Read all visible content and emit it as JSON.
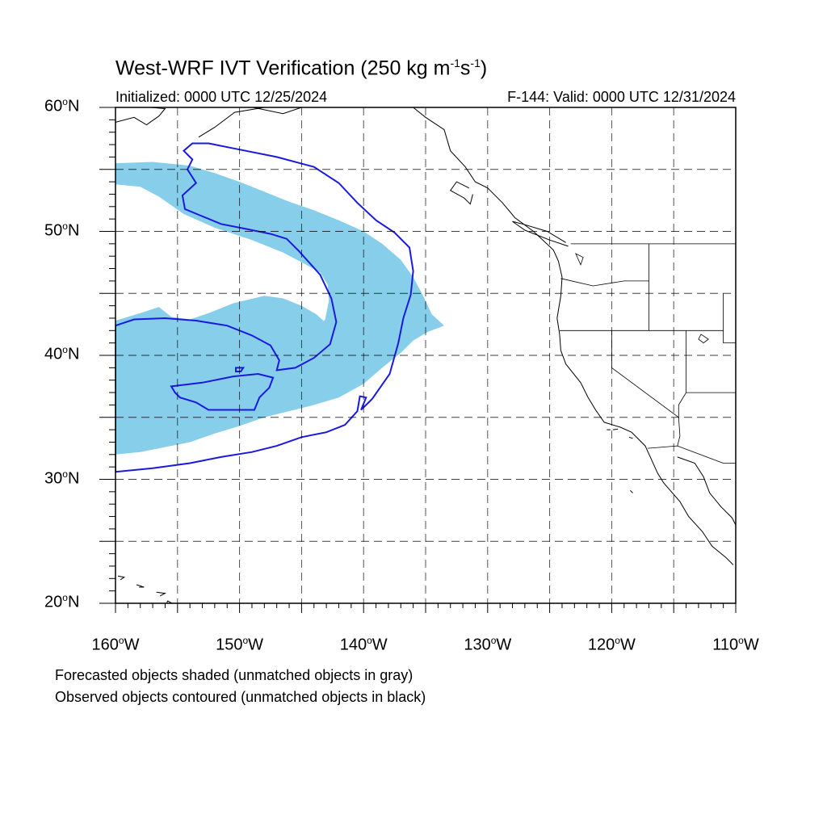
{
  "title": {
    "main": "West-WRF IVT Verification (250 kg m",
    "exp1": "-1",
    "mid": "s",
    "exp2": "-1",
    "close": ")"
  },
  "subtitle_left": "Initialized: 0000 UTC 12/25/2024",
  "subtitle_right": "F-144: Valid: 0000 UTC 12/31/2024",
  "map_extent": {
    "lon_min": -160,
    "lon_max": -110,
    "lat_min": 20,
    "lat_max": 60
  },
  "lat_labels": [
    {
      "lat": 60,
      "num": "60",
      "hemi": "N"
    },
    {
      "lat": 50,
      "num": "50",
      "hemi": "N"
    },
    {
      "lat": 40,
      "num": "40",
      "hemi": "N"
    },
    {
      "lat": 30,
      "num": "30",
      "hemi": "N"
    },
    {
      "lat": 20,
      "num": "20",
      "hemi": "N"
    }
  ],
  "lon_labels": [
    {
      "lon": -160,
      "num": "160",
      "hemi": "W"
    },
    {
      "lon": -150,
      "num": "150",
      "hemi": "W"
    },
    {
      "lon": -140,
      "num": "140",
      "hemi": "W"
    },
    {
      "lon": -130,
      "num": "130",
      "hemi": "W"
    },
    {
      "lon": -120,
      "num": "120",
      "hemi": "W"
    },
    {
      "lon": -110,
      "num": "110",
      "hemi": "W"
    }
  ],
  "degree_symbol": "o",
  "gridlines": {
    "style": "dashed",
    "lon_step": 5,
    "lat_step": 5
  },
  "colors": {
    "forecast_fill": "#87ceeb",
    "observed_contour": "#1a1adf",
    "coast": "#000000"
  },
  "forecast_object": {
    "label": "forecast IVT object (shaded)",
    "outline": [
      [
        -160,
        55.5
      ],
      [
        -157,
        55.6
      ],
      [
        -154,
        55.3
      ],
      [
        -152,
        54.7
      ],
      [
        -150,
        54.0
      ],
      [
        -148,
        53.2
      ],
      [
        -146,
        52.4
      ],
      [
        -144,
        51.7
      ],
      [
        -142,
        50.9
      ],
      [
        -140,
        50.0
      ],
      [
        -138.5,
        49.0
      ],
      [
        -137,
        47.7
      ],
      [
        -136,
        46.3
      ],
      [
        -135.2,
        44.8
      ],
      [
        -134.5,
        43.3
      ],
      [
        -133.5,
        42.4
      ],
      [
        -134.8,
        41.9
      ],
      [
        -136,
        41.2
      ],
      [
        -137,
        40.2
      ],
      [
        -138.5,
        39.0
      ],
      [
        -140,
        37.7
      ],
      [
        -142,
        36.6
      ],
      [
        -144,
        36.0
      ],
      [
        -146,
        35.5
      ],
      [
        -148,
        35.0
      ],
      [
        -150,
        34.3
      ],
      [
        -152,
        33.7
      ],
      [
        -154,
        33.0
      ],
      [
        -156,
        32.6
      ],
      [
        -158,
        32.2
      ],
      [
        -160,
        32.0
      ],
      [
        -160,
        42.8
      ],
      [
        -158,
        43.4
      ],
      [
        -156.5,
        43.9
      ],
      [
        -155.5,
        43.1
      ],
      [
        -154,
        42.9
      ],
      [
        -152.5,
        43.4
      ],
      [
        -150.5,
        44.2
      ],
      [
        -148,
        44.8
      ],
      [
        -146.5,
        44.6
      ],
      [
        -145,
        44.0
      ],
      [
        -143.8,
        43.3
      ],
      [
        -142.8,
        42.4
      ],
      [
        -142.2,
        41.2
      ],
      [
        -143.5,
        40.7
      ],
      [
        -145.5,
        40.5
      ],
      [
        -144.2,
        41.6
      ],
      [
        -143.1,
        42.9
      ],
      [
        -142.8,
        44.4
      ],
      [
        -142.9,
        45.7
      ],
      [
        -143.5,
        46.7
      ],
      [
        -144.8,
        47.4
      ],
      [
        -146.5,
        48.3
      ],
      [
        -149,
        49.3
      ],
      [
        -152,
        50.3
      ],
      [
        -154.5,
        51.4
      ],
      [
        -156.5,
        52.8
      ],
      [
        -158,
        53.6
      ],
      [
        -160,
        53.8
      ]
    ]
  },
  "observed_objects": [
    {
      "label": "main observed IVT object (contour)",
      "outline": [
        [
          -152.5,
          57.1
        ],
        [
          -150,
          56.6
        ],
        [
          -147,
          56.0
        ],
        [
          -144,
          55.2
        ],
        [
          -142,
          53.9
        ],
        [
          -140.5,
          52.3
        ],
        [
          -139,
          50.9
        ],
        [
          -137.5,
          49.9
        ],
        [
          -136.3,
          48.7
        ],
        [
          -136,
          46.8
        ],
        [
          -136.2,
          44.9
        ],
        [
          -136.8,
          43.0
        ],
        [
          -137.2,
          41.0
        ],
        [
          -137.9,
          38.5
        ],
        [
          -139.3,
          36.5
        ],
        [
          -140.2,
          35.6
        ],
        [
          -139.8,
          36.6
        ],
        [
          -140.3,
          36.7
        ],
        [
          -140.5,
          35.5
        ],
        [
          -141.5,
          34.4
        ],
        [
          -143,
          33.8
        ],
        [
          -145,
          33.4
        ],
        [
          -147,
          32.7
        ],
        [
          -149,
          32.2
        ],
        [
          -151.5,
          31.8
        ],
        [
          -154,
          31.3
        ],
        [
          -157,
          30.9
        ],
        [
          -160,
          30.6
        ],
        [
          -160,
          42.4
        ],
        [
          -158.5,
          42.9
        ],
        [
          -156,
          43.0
        ],
        [
          -153.5,
          42.8
        ],
        [
          -151,
          42.4
        ],
        [
          -149,
          41.6
        ],
        [
          -147.5,
          40.8
        ],
        [
          -146.8,
          39.6
        ],
        [
          -147,
          38.8
        ],
        [
          -145.5,
          39.0
        ],
        [
          -144,
          39.8
        ],
        [
          -142.7,
          40.9
        ],
        [
          -142.2,
          42.7
        ],
        [
          -142.6,
          44.6
        ],
        [
          -143.5,
          46.5
        ],
        [
          -145.2,
          48.4
        ],
        [
          -146.2,
          49.4
        ],
        [
          -147.5,
          49.8
        ],
        [
          -149.5,
          50.2
        ],
        [
          -151.5,
          50.6
        ],
        [
          -153.2,
          51.3
        ],
        [
          -154.4,
          51.8
        ],
        [
          -154.6,
          52.9
        ],
        [
          -153.5,
          53.9
        ],
        [
          -154.2,
          55.0
        ],
        [
          -153.8,
          55.8
        ],
        [
          -154.5,
          56.5
        ],
        [
          -153.8,
          57.1
        ]
      ]
    },
    {
      "label": "inner observed IVT object (contour)",
      "outline": [
        [
          -155.5,
          37.5
        ],
        [
          -153,
          37.8
        ],
        [
          -150.5,
          38.3
        ],
        [
          -148.5,
          38.5
        ],
        [
          -147.3,
          38.2
        ],
        [
          -147.6,
          37.4
        ],
        [
          -148.4,
          36.6
        ],
        [
          -148.8,
          35.6
        ],
        [
          -150.5,
          35.6
        ],
        [
          -152.5,
          35.6
        ],
        [
          -153.5,
          36.2
        ],
        [
          -154.8,
          36.6
        ],
        [
          -155.2,
          37.0
        ]
      ]
    },
    {
      "label": "small observed IVT object (contour)",
      "outline": [
        [
          -150.3,
          39.0
        ],
        [
          -149.7,
          39.0
        ],
        [
          -149.9,
          38.7
        ],
        [
          -150.3,
          38.7
        ]
      ]
    }
  ],
  "coastline": [
    [
      -153.3,
      57.6
    ],
    [
      -152,
      58.4
    ],
    [
      -150.4,
      59.6
    ],
    [
      -148,
      60
    ],
    [
      -136,
      60
    ],
    [
      -135,
      59.2
    ],
    [
      -133.5,
      58.2
    ],
    [
      -133,
      56.5
    ],
    [
      -131.8,
      55.2
    ],
    [
      -131,
      54
    ],
    [
      -130,
      53.5
    ],
    [
      -128.8,
      52.3
    ],
    [
      -127.8,
      51.1
    ],
    [
      -126.3,
      50
    ],
    [
      -124.7,
      48.5
    ],
    [
      -124.3,
      47.6
    ],
    [
      -124,
      46.3
    ],
    [
      -124.1,
      44.8
    ],
    [
      -124.4,
      43
    ],
    [
      -124.2,
      41.7
    ],
    [
      -124.1,
      40.4
    ],
    [
      -123.7,
      39.3
    ],
    [
      -122.5,
      37.8
    ],
    [
      -121.9,
      36.6
    ],
    [
      -121.3,
      35.6
    ],
    [
      -120.6,
      34.6
    ],
    [
      -119.3,
      34.2
    ],
    [
      -118.4,
      33.8
    ],
    [
      -117.3,
      32.7
    ],
    [
      -116.8,
      31.6
    ],
    [
      -116.3,
      30.5
    ],
    [
      -115.8,
      29.7
    ],
    [
      -114.5,
      28.2
    ],
    [
      -113.8,
      27
    ],
    [
      -112.7,
      25.8
    ],
    [
      -111.9,
      24.6
    ],
    [
      -110.8,
      23.7
    ],
    [
      -110.2,
      23.1
    ]
  ],
  "gulf_coast": [
    [
      -114.7,
      31.8
    ],
    [
      -113.3,
      31.3
    ],
    [
      -112.6,
      30.2
    ],
    [
      -112.1,
      28.9
    ],
    [
      -111.2,
      27.8
    ],
    [
      -110.3,
      26.9
    ],
    [
      -110,
      26.3
    ]
  ],
  "alaska_coast": [
    [
      -160,
      58.8
    ],
    [
      -158.5,
      59.2
    ],
    [
      -157.5,
      58.6
    ],
    [
      -156.5,
      59.3
    ],
    [
      -156,
      59.9
    ],
    [
      -157.2,
      60
    ]
  ],
  "borders": [
    [
      [
        -123.3,
        49
      ],
      [
        -110,
        49
      ]
    ],
    [
      [
        -124.1,
        46.2
      ],
      [
        -121.5,
        45.6
      ],
      [
        -119,
        46
      ],
      [
        -117,
        46
      ]
    ],
    [
      [
        -124.2,
        42
      ],
      [
        -111,
        42
      ]
    ],
    [
      [
        -120,
        42
      ],
      [
        -120,
        39
      ],
      [
        -114.6,
        35
      ]
    ],
    [
      [
        -117,
        49
      ],
      [
        -117,
        44
      ],
      [
        -117,
        42
      ]
    ],
    [
      [
        -114,
        42
      ],
      [
        -114,
        37
      ],
      [
        -114.6,
        36
      ],
      [
        -114.6,
        35
      ]
    ],
    [
      [
        -114,
        37
      ],
      [
        -110,
        37
      ]
    ],
    [
      [
        -117.1,
        32.5
      ],
      [
        -114.7,
        32.7
      ],
      [
        -111,
        31.3
      ],
      [
        -110,
        31.3
      ]
    ],
    [
      [
        -114.7,
        32.7
      ],
      [
        -114.5,
        33.5
      ],
      [
        -114.6,
        35
      ]
    ],
    [
      [
        -111,
        45
      ],
      [
        -111,
        41
      ],
      [
        -110,
        41
      ]
    ]
  ],
  "islands": [
    [
      [
        -123.5,
        48.8
      ],
      [
        -125,
        49.3
      ],
      [
        -127,
        50.1
      ],
      [
        -128,
        50.8
      ],
      [
        -127.2,
        50.6
      ],
      [
        -125.2,
        50
      ],
      [
        -123.7,
        49.1
      ]
    ],
    [
      [
        -131.5,
        53.5
      ],
      [
        -132.5,
        54
      ],
      [
        -133,
        53.3
      ],
      [
        -131.9,
        52.7
      ],
      [
        -131.4,
        52.2
      ],
      [
        -131.2,
        53
      ]
    ],
    [
      [
        -118.6,
        33.4
      ],
      [
        -118.3,
        33.3
      ]
    ],
    [
      [
        -119.9,
        34
      ],
      [
        -119.5,
        34.05
      ]
    ],
    [
      [
        -120.4,
        34
      ],
      [
        -120.1,
        34
      ]
    ],
    [
      [
        -118.5,
        29.1
      ],
      [
        -118.3,
        28.9
      ]
    ],
    [
      [
        -155.8,
        20.2
      ],
      [
        -155.1,
        19.8
      ],
      [
        -154.9,
        19.5
      ],
      [
        -155.6,
        19
      ],
      [
        -156,
        19.5
      ],
      [
        -155.8,
        20.2
      ]
    ],
    [
      [
        -156.7,
        20.9
      ],
      [
        -156.0,
        20.8
      ],
      [
        -156.4,
        20.6
      ]
    ],
    [
      [
        -158.3,
        21.5
      ],
      [
        -157.7,
        21.3
      ],
      [
        -158.1,
        21.3
      ]
    ],
    [
      [
        -159.8,
        22.2
      ],
      [
        -159.3,
        22.1
      ],
      [
        -159.6,
        21.9
      ]
    ],
    [
      [
        -148.9,
        60
      ],
      [
        -146.5,
        59.5
      ],
      [
        -145,
        60
      ]
    ]
  ],
  "lakes": [
    [
      [
        -112.8,
        41.7
      ],
      [
        -112.2,
        41.3
      ],
      [
        -112.6,
        41
      ],
      [
        -113,
        41.3
      ]
    ],
    [
      [
        -122.9,
        48.2
      ],
      [
        -122.5,
        47.3
      ],
      [
        -122.3,
        47.9
      ]
    ]
  ],
  "legend_note_1": "Forecasted objects shaded (unmatched objects in gray)",
  "legend_note_2": "Observed objects contoured (unmatched objects in black)"
}
